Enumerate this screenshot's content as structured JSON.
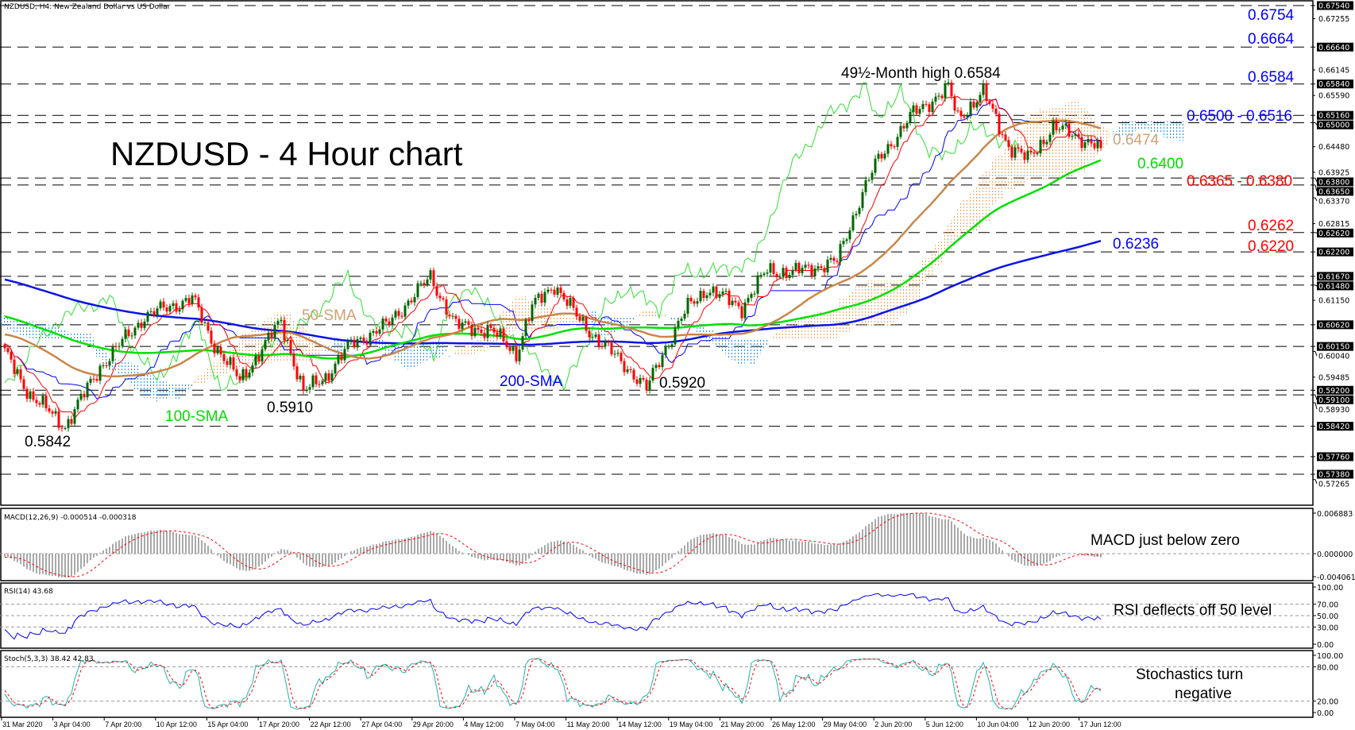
{
  "chart_data": {
    "type": "candlestick",
    "title": "NZDUSD - 4 Hour chart",
    "symbol_label": "NZDUSD, H4:  New Zealand Dollar vs US Dollar",
    "ylim": [
      0.5727,
      0.6754
    ],
    "price_path": [
      [
        0,
        0.6
      ],
      [
        8,
        0.591
      ],
      [
        19,
        0.5842
      ],
      [
        30,
        0.597
      ],
      [
        44,
        0.608
      ],
      [
        59,
        0.612
      ],
      [
        65,
        0.603
      ],
      [
        74,
        0.594
      ],
      [
        82,
        0.602
      ],
      [
        87,
        0.607
      ],
      [
        94,
        0.5915
      ],
      [
        101,
        0.595
      ],
      [
        109,
        0.602
      ],
      [
        120,
        0.606
      ],
      [
        128,
        0.612
      ],
      [
        134,
        0.6165
      ],
      [
        142,
        0.606
      ],
      [
        153,
        0.605
      ],
      [
        161,
        0.6
      ],
      [
        166,
        0.61
      ],
      [
        173,
        0.615
      ],
      [
        180,
        0.608
      ],
      [
        188,
        0.602
      ],
      [
        196,
        0.597
      ],
      [
        202,
        0.5922
      ],
      [
        207,
        0.6
      ],
      [
        215,
        0.61
      ],
      [
        221,
        0.614
      ],
      [
        232,
        0.61
      ],
      [
        240,
        0.618
      ],
      [
        248,
        0.6175
      ],
      [
        262,
        0.62
      ],
      [
        270,
        0.635
      ],
      [
        275,
        0.642
      ],
      [
        286,
        0.652
      ],
      [
        297,
        0.6575
      ],
      [
        300,
        0.651
      ],
      [
        308,
        0.6565
      ],
      [
        316,
        0.645
      ],
      [
        322,
        0.642
      ],
      [
        330,
        0.649
      ],
      [
        338,
        0.647
      ],
      [
        345,
        0.6445
      ]
    ],
    "levels": [
      0.6754,
      0.6664,
      0.6584,
      0.6516,
      0.65,
      0.638,
      0.6365,
      0.6262,
      0.622,
      0.6167,
      0.6148,
      0.6062,
      0.6015,
      0.592,
      0.591,
      0.5842,
      0.5776,
      0.5738
    ],
    "level_labels": [
      "0.67540",
      "0.66640",
      "0.65840",
      "0.65160",
      "0.65000",
      "0.63800",
      "0.63650",
      "0.62620",
      "0.62200",
      "0.61670",
      "0.61480",
      "0.60620",
      "0.60150",
      "0.59200",
      "0.59100",
      "0.58420",
      "0.57760",
      "0.57380"
    ],
    "axis_ticks": [
      0.67255,
      0.66145,
      0.6559,
      0.6448,
      0.63925,
      0.6337,
      0.62815,
      0.6115,
      0.6004,
      0.59485,
      0.5893,
      0.57265
    ],
    "axis_tick_labels": [
      "0.67255",
      "0.66145",
      "0.65590",
      "0.64480",
      "0.63925",
      "0.63370",
      "0.62815",
      "0.61150",
      "0.60040",
      "0.59485",
      "0.58930",
      "0.57265"
    ],
    "x_tick_labels": [
      "31 Mar 2020",
      "3 Apr 04:00",
      "7 Apr 20:00",
      "10 Apr 12:00",
      "15 Apr 04:00",
      "17 Apr 20:00",
      "22 Apr 12:00",
      "27 Apr 04:00",
      "29 Apr 20:00",
      "4 May 12:00",
      "7 May 04:00",
      "11 May 20:00",
      "14 May 12:00",
      "19 May 04:00",
      "21 May 20:00",
      "26 May 12:00",
      "29 May 04:00",
      "2 Jun 20:00",
      "5 Jun 12:00",
      "10 Jun 04:00",
      "12 Jun 20:00",
      "17 Jun 12:00"
    ],
    "annotations": {
      "high": "49½-Month high 0.6584",
      "r6754": "0.6754",
      "r6664": "0.6664",
      "r6584": "0.6584",
      "r6500": "0.6500 - 0.6516",
      "sma50val": "0.6474",
      "sma100val": "0.6400",
      "s6365": "0.6365 - 0.6380",
      "s6262": "0.6262",
      "s6220": "0.6220",
      "sma200val": "0.6236",
      "sma50": "50-SMA",
      "sma100": "100-SMA",
      "sma200": "200-SMA",
      "low5910": "0.5910",
      "low5920": "0.5920",
      "low5842": "0.5842"
    },
    "indicators": {
      "macd": {
        "label": "MACD(12,26,9) -0.000514 -0.000318",
        "ylim": [
          -0.004061,
          0.006883
        ],
        "tick_labels": [
          "0.006883",
          "0.000000",
          "-0.004061"
        ],
        "comment": "MACD just below zero"
      },
      "rsi": {
        "label": "RSI(14) 43.68",
        "tick_labels": [
          "100.00",
          "70.00",
          "50.00",
          "30.00",
          "0.00"
        ],
        "comment": "RSI deflects off 50 level"
      },
      "stoch": {
        "label": "Stoch(5,3,3) 38.42 42.83",
        "tick_labels": [
          "100.00",
          "80.00",
          "20.00",
          "0.00"
        ],
        "comment_line1": "Stochastics turn",
        "comment_line2": "negative"
      }
    },
    "colors": {
      "up": "#006400",
      "down": "#ff0000",
      "sma50": "#c8874a",
      "sma100": "#00e000",
      "sma200": "#0a14e6",
      "tenkan": "#ff0000",
      "kijun": "#0000ff",
      "chikou": "#33dd33",
      "cloud_a": "#f4a460",
      "cloud_b": "#1e90ff",
      "stoch_main": "#20b2aa",
      "blue_text": "#0000ff",
      "red_text": "#ff0000",
      "green_text": "#00dd00",
      "orange_text": "#d2a070"
    }
  }
}
